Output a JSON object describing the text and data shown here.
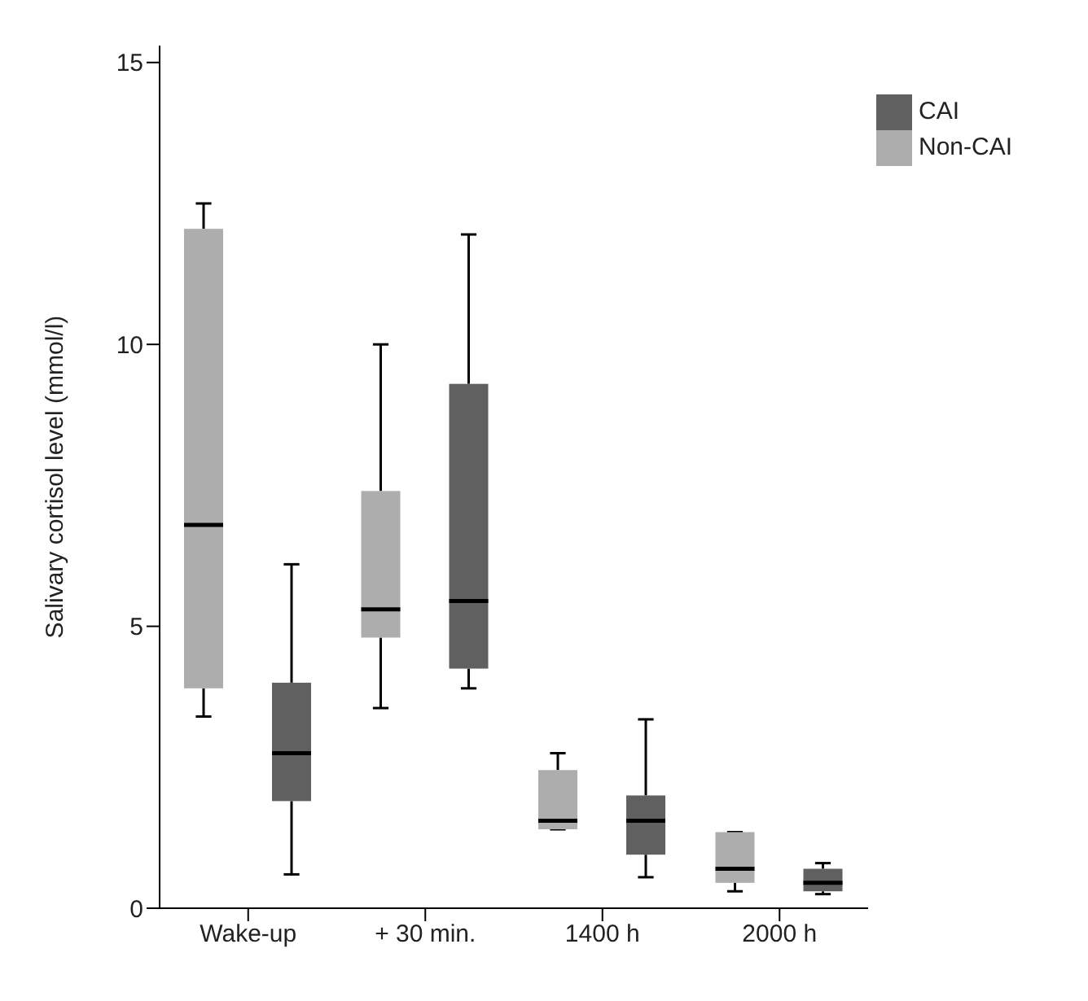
{
  "chart_data": {
    "type": "box",
    "ylabel": "Salivary cortisol level (mmol/l)",
    "categories": [
      "Wake-up",
      "+ 30 min.",
      "1400 h",
      "2000 h"
    ],
    "ylim": [
      0,
      15.3
    ],
    "yticks": [
      0,
      5,
      10,
      15
    ],
    "legend": "top right",
    "grid": false,
    "series": [
      {
        "name": "Non-CAI",
        "color": "#adadad",
        "boxes": [
          {
            "low": 3.4,
            "q1": 3.9,
            "median": 6.8,
            "q3": 12.05,
            "high": 12.5
          },
          {
            "low": 3.55,
            "q1": 4.8,
            "median": 5.3,
            "q3": 7.4,
            "high": 10
          },
          {
            "low": 1.4,
            "q1": 1.4,
            "median": 1.55,
            "q3": 2.45,
            "high": 2.75
          },
          {
            "low": 0.3,
            "q1": 0.45,
            "median": 0.7,
            "q3": 1.35,
            "high": 1.35
          }
        ]
      },
      {
        "name": "CAI",
        "color": "#606060",
        "boxes": [
          {
            "low": 0.6,
            "q1": 1.9,
            "median": 2.75,
            "q3": 4,
            "high": 6.1
          },
          {
            "low": 3.9,
            "q1": 4.25,
            "median": 5.45,
            "q3": 9.3,
            "high": 11.95
          },
          {
            "low": 0.55,
            "q1": 0.95,
            "median": 1.55,
            "q3": 2,
            "high": 3.35
          },
          {
            "low": 0.25,
            "q1": 0.3,
            "median": 0.45,
            "q3": 0.7,
            "high": 0.8
          }
        ]
      }
    ]
  }
}
